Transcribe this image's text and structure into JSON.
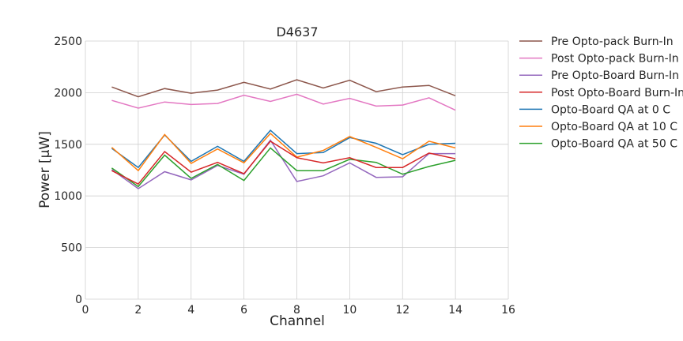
{
  "chart_data": {
    "type": "line",
    "title": "D4637",
    "xlabel": "Channel",
    "ylabel": "Power [μW]",
    "xlim": [
      0,
      16
    ],
    "ylim": [
      0,
      2500
    ],
    "xticks": [
      0,
      2,
      4,
      6,
      8,
      10,
      12,
      14,
      16
    ],
    "yticks": [
      0,
      500,
      1000,
      1500,
      2000,
      2500
    ],
    "grid": true,
    "legend_position": "outside-right-top",
    "x": [
      1,
      2,
      3,
      4,
      5,
      6,
      7,
      8,
      9,
      10,
      11,
      12,
      13,
      14
    ],
    "series": [
      {
        "name": "Pre Opto-pack Burn-In",
        "color": "#8c564b",
        "values": [
          2055,
          1960,
          2040,
          1995,
          2025,
          2100,
          2035,
          2125,
          2045,
          2120,
          2010,
          2055,
          2070,
          1970
        ]
      },
      {
        "name": "Post Opto-pack Burn-In",
        "color": "#e377c2",
        "values": [
          1925,
          1850,
          1910,
          1885,
          1895,
          1975,
          1915,
          1985,
          1890,
          1945,
          1870,
          1880,
          1950,
          1830
        ]
      },
      {
        "name": "Pre Opto-Board Burn-In",
        "color": "#9467bd",
        "values": [
          1255,
          1070,
          1235,
          1155,
          1295,
          1210,
          1540,
          1140,
          1195,
          1320,
          1180,
          1185,
          1410,
          1410
        ]
      },
      {
        "name": "Opto-Board QA at 0 C",
        "color": "#1f77b4",
        "values": [
          1460,
          1275,
          1590,
          1335,
          1480,
          1335,
          1635,
          1410,
          1420,
          1565,
          1510,
          1400,
          1500,
          1510
        ]
      },
      {
        "name": "Opto-Board QA at 10 C",
        "color": "#ff7f0e",
        "values": [
          1470,
          1245,
          1595,
          1315,
          1455,
          1320,
          1605,
          1375,
          1440,
          1575,
          1470,
          1360,
          1530,
          1465
        ]
      },
      {
        "name": "Opto-Board QA at 50 C",
        "color": "#2ca02c",
        "values": [
          1270,
          1090,
          1395,
          1170,
          1305,
          1150,
          1465,
          1245,
          1245,
          1355,
          1325,
          1210,
          1285,
          1345
        ]
      },
      {
        "name": "Post Opto-Board Burn-In",
        "color": "#d62728",
        "values": [
          1245,
          1115,
          1430,
          1230,
          1325,
          1215,
          1530,
          1370,
          1320,
          1370,
          1275,
          1275,
          1415,
          1360
        ]
      }
    ],
    "legend_order": [
      "Pre Opto-pack Burn-In",
      "Post Opto-pack Burn-In",
      "Pre Opto-Board Burn-In",
      "Post Opto-Board Burn-In",
      "Opto-Board QA at 0 C",
      "Opto-Board QA at 10 C",
      "Opto-Board QA at 50 C"
    ]
  }
}
